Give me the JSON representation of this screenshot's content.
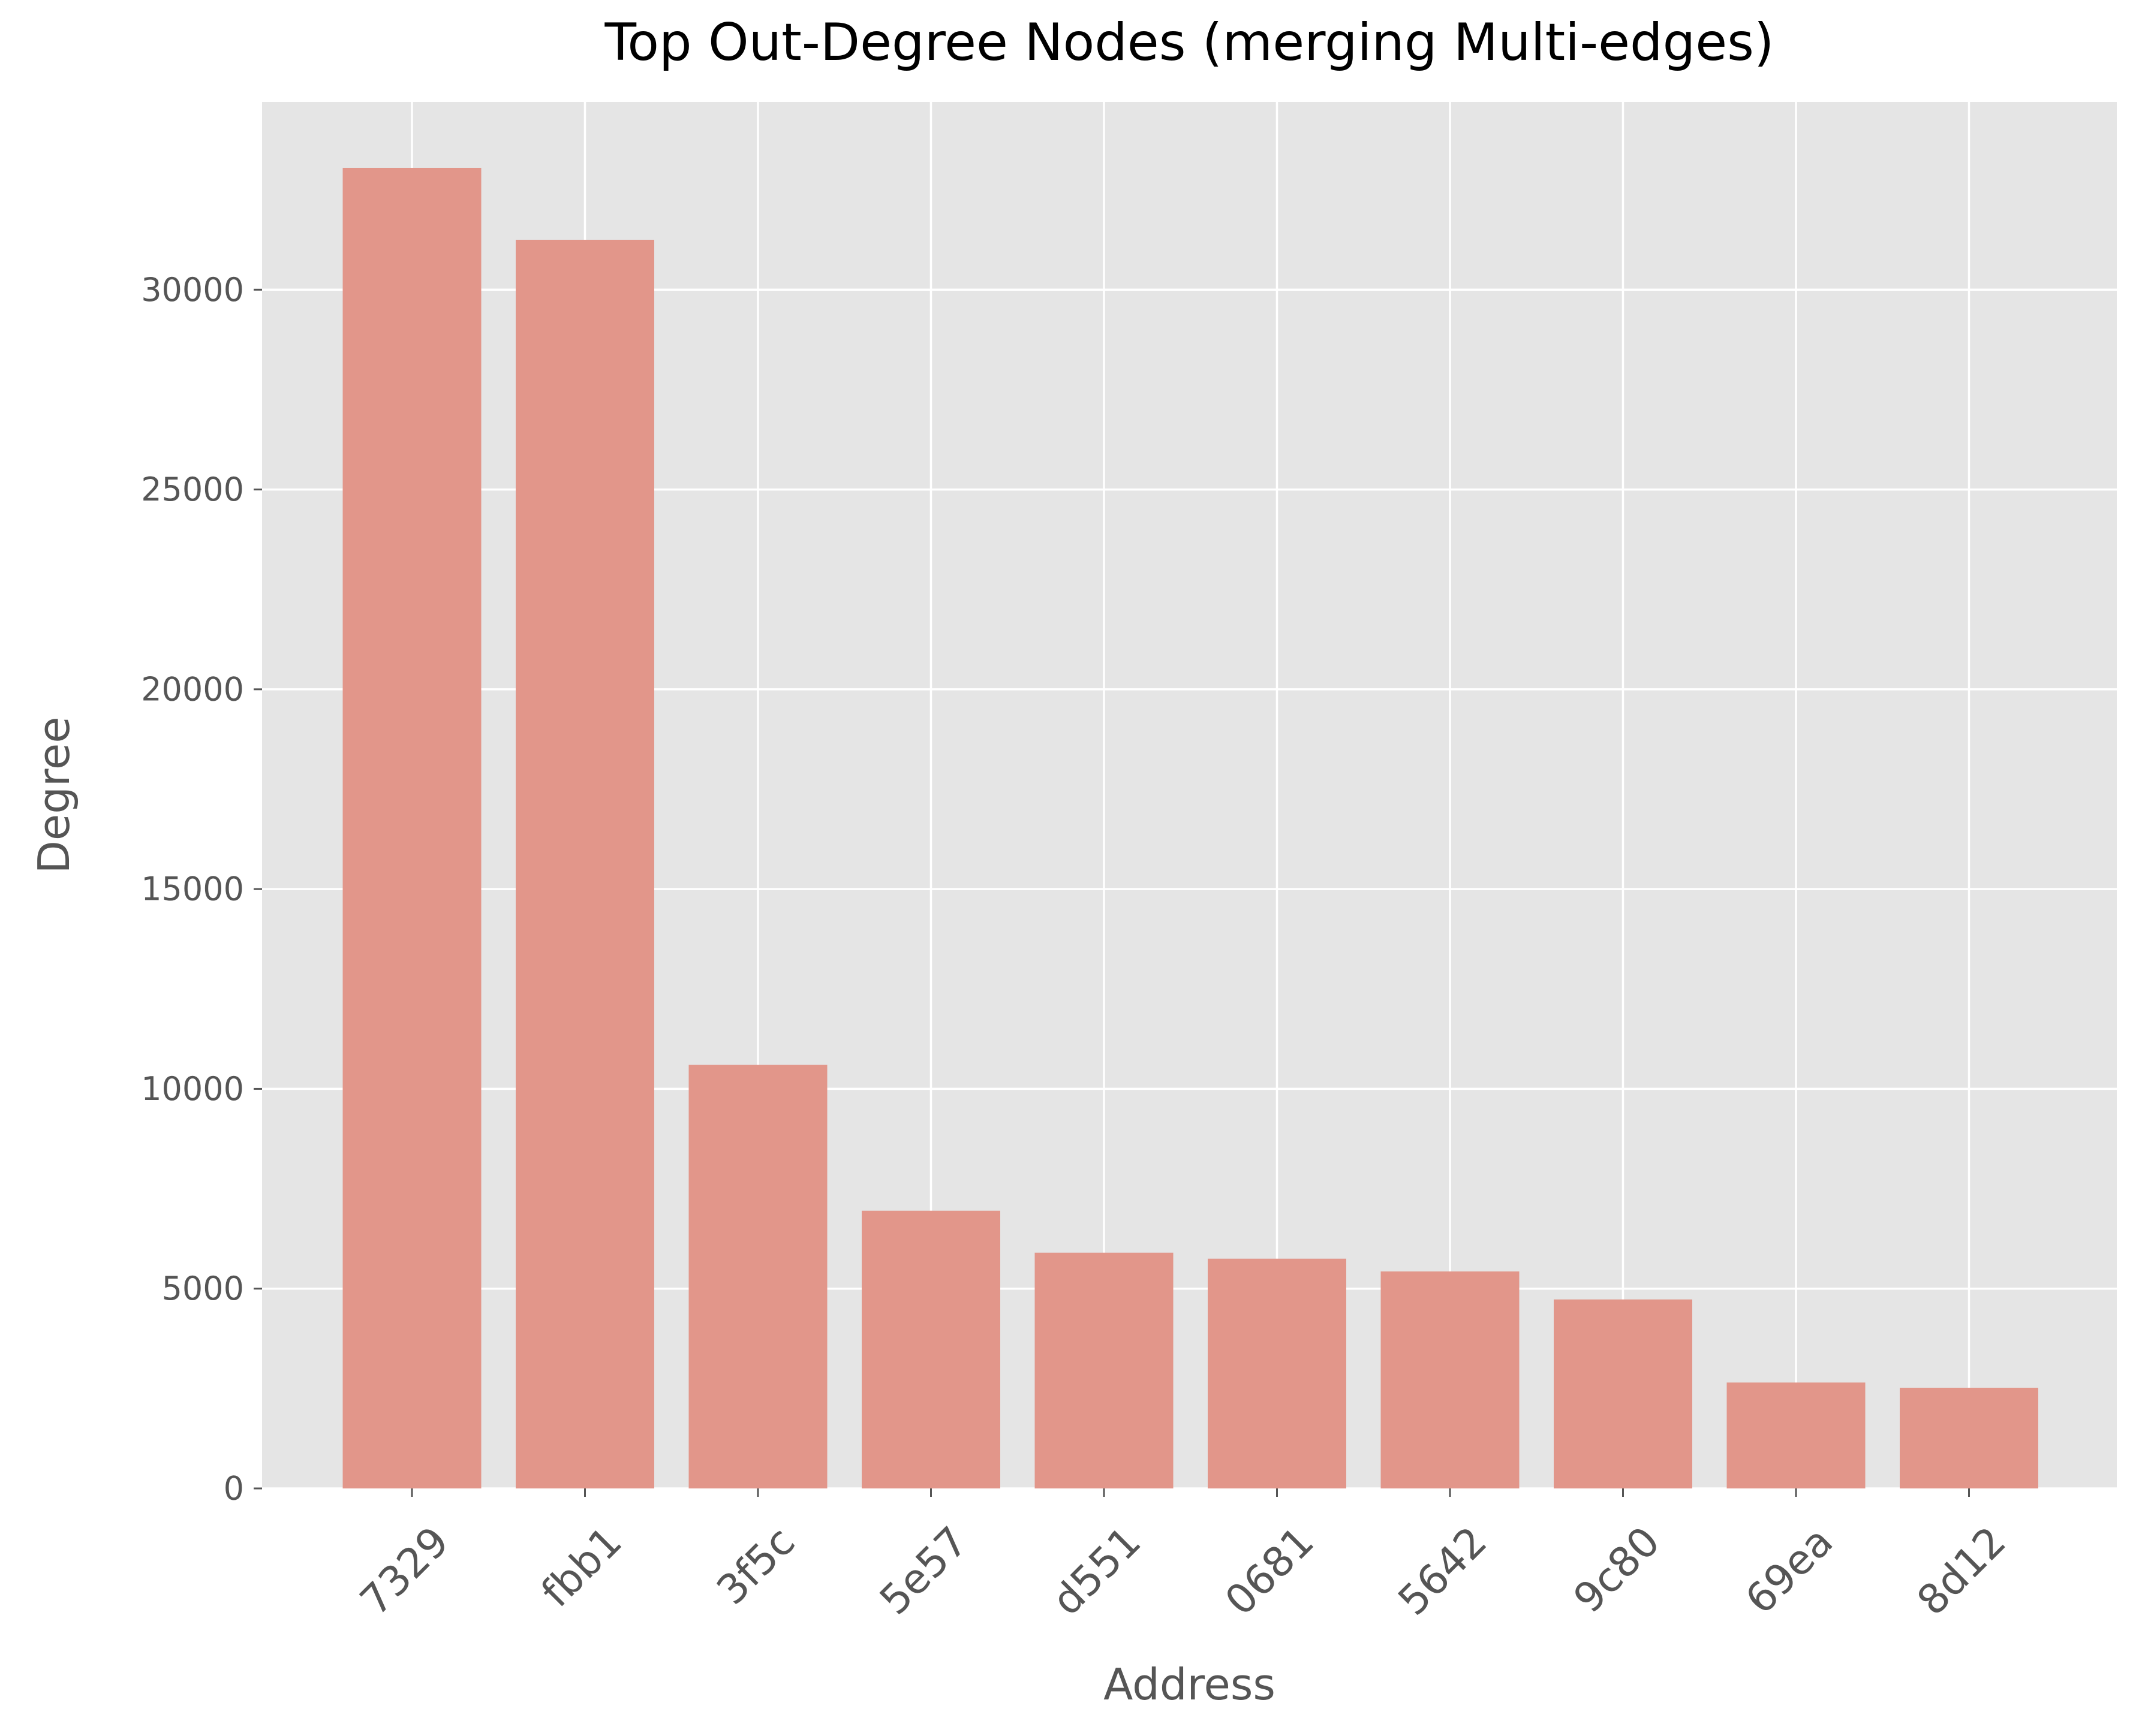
{
  "chart_data": {
    "type": "bar",
    "title": "Top Out-Degree Nodes (merging Multi-edges)",
    "xlabel": "Address",
    "ylabel": "Degree",
    "categories": [
      "7329",
      "fbb1",
      "3f5c",
      "5e57",
      "d551",
      "0681",
      "5642",
      "9c80",
      "69ea",
      "8d12"
    ],
    "values": [
      33050,
      31250,
      10600,
      6950,
      5900,
      5750,
      5430,
      4730,
      2650,
      2520
    ],
    "ylim": [
      0,
      34700
    ],
    "yticks": [
      0,
      5000,
      10000,
      15000,
      20000,
      25000,
      30000
    ],
    "ytick_labels": [
      "0",
      "5000",
      "10000",
      "15000",
      "20000",
      "25000",
      "30000"
    ],
    "grid": true,
    "legend": "none",
    "colors": {
      "bar": "#e2968a",
      "plot_background": "#e5e5e5",
      "grid": "#ffffff",
      "tick_text": "#555555",
      "title_text": "#000000"
    }
  }
}
